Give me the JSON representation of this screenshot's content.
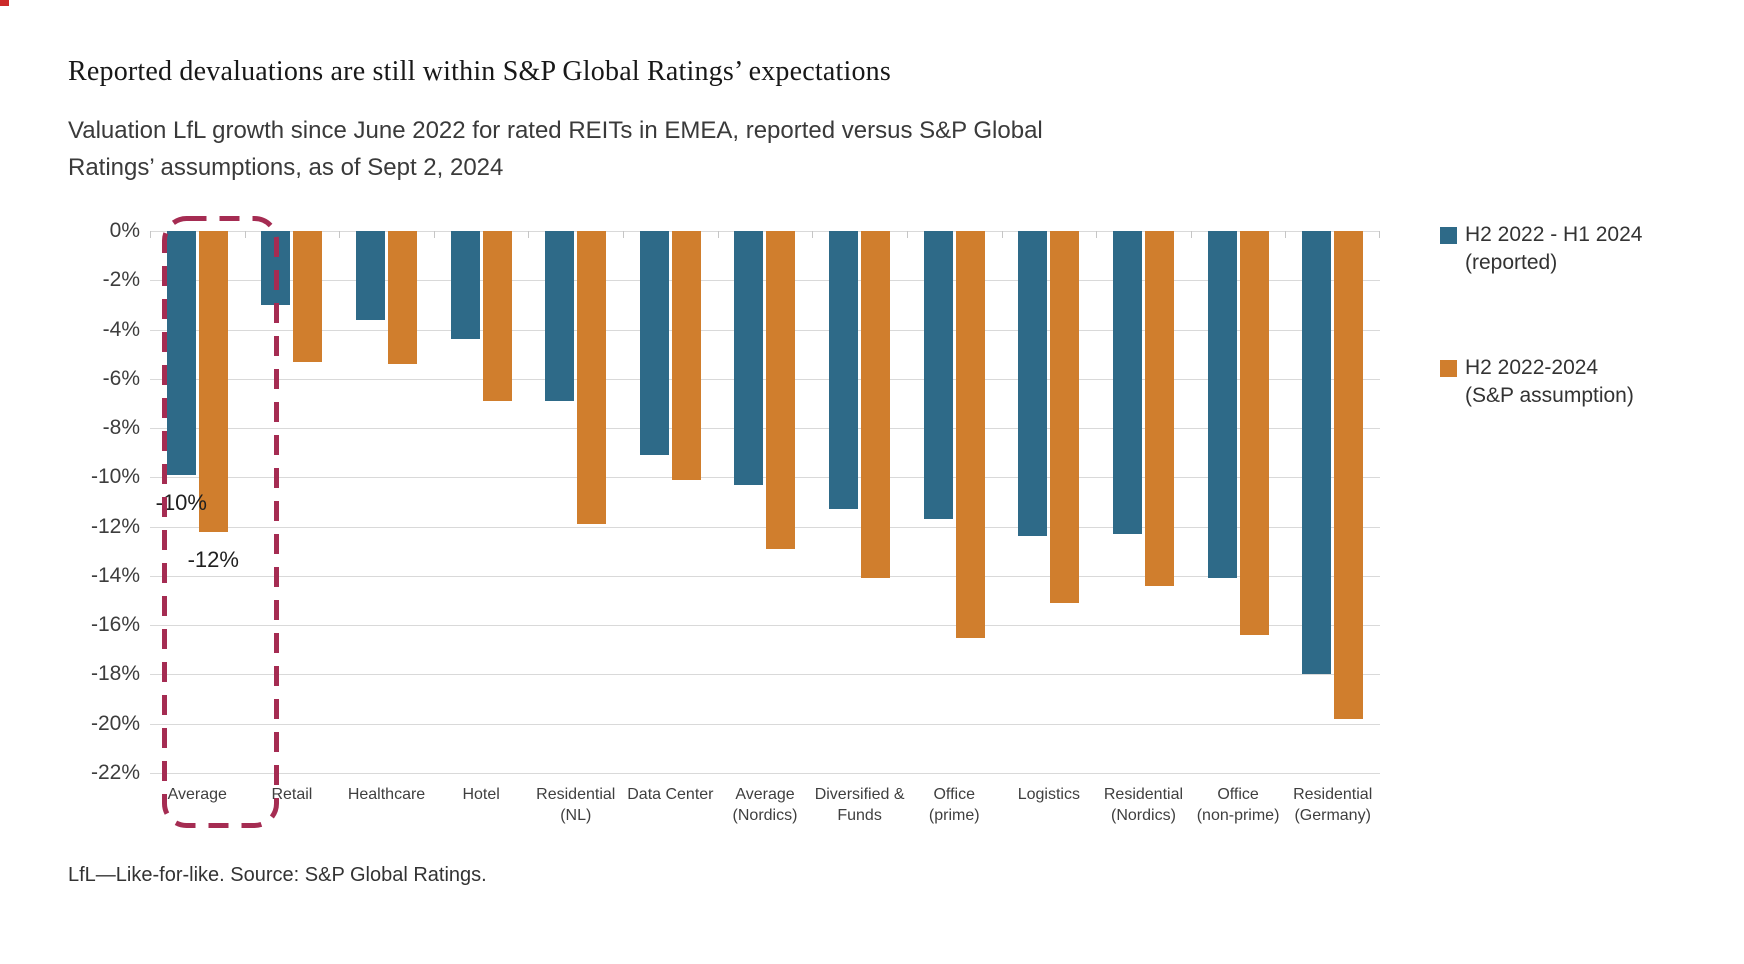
{
  "header": {
    "title": "Reported devaluations are still within S&P Global Ratings’ expectations",
    "subtitle": "Valuation LfL growth since June 2022 for rated REITs in EMEA, reported versus S&P Global Ratings’ assumptions, as of Sept 2, 2024"
  },
  "chart_data": {
    "type": "bar",
    "categories": [
      [
        "Average"
      ],
      [
        "Retail"
      ],
      [
        "Healthcare"
      ],
      [
        "Hotel"
      ],
      [
        "Residential",
        "(NL)"
      ],
      [
        "Data Center"
      ],
      [
        "Average",
        "(Nordics)"
      ],
      [
        "Diversified &",
        "Funds"
      ],
      [
        "Office",
        "(prime)"
      ],
      [
        "Logistics"
      ],
      [
        "Residential",
        "(Nordics)"
      ],
      [
        "Office",
        "(non-prime)"
      ],
      [
        "Residential",
        "(Germany)"
      ]
    ],
    "series": [
      {
        "name": "H2 2022 - H1 2024 (reported)",
        "color": "#2E6A88",
        "values": [
          -9.9,
          -3.0,
          -3.6,
          -4.4,
          -6.9,
          -9.1,
          -10.3,
          -11.3,
          -11.7,
          -12.4,
          -12.3,
          -14.1,
          -18.0
        ]
      },
      {
        "name": "H2 2022-2024 (S&P assumption)",
        "color": "#D07E2D",
        "values": [
          -12.2,
          -5.3,
          -5.4,
          -6.9,
          -11.9,
          -10.1,
          -12.9,
          -14.1,
          -16.5,
          -15.1,
          -14.4,
          -16.4,
          -19.8
        ]
      }
    ],
    "ylim": [
      -22,
      0
    ],
    "ytick_labels": [
      "0%",
      "-2%",
      "-4%",
      "-6%",
      "-8%",
      "-10%",
      "-12%",
      "-14%",
      "-16%",
      "-18%",
      "-20%",
      "-22%"
    ],
    "grid": true,
    "legend_position": "right",
    "annotations": [
      {
        "text": "-10%",
        "category_index": 0,
        "series_index": 0
      },
      {
        "text": "-12%",
        "category_index": 0,
        "series_index": 1
      }
    ],
    "highlight": {
      "category_index": 0,
      "style": "dashed-rounded-box",
      "color": "#A52C52"
    }
  },
  "legend": {
    "entries": [
      {
        "color": "#2E6A88",
        "line1": "H2 2022 - H1 2024",
        "line2": "(reported)"
      },
      {
        "color": "#D07E2D",
        "line1": "H2 2022-2024",
        "line2": "(S&P assumption)"
      }
    ]
  },
  "footnote": "LfL—Like-for-like. Source: S&P Global Ratings."
}
